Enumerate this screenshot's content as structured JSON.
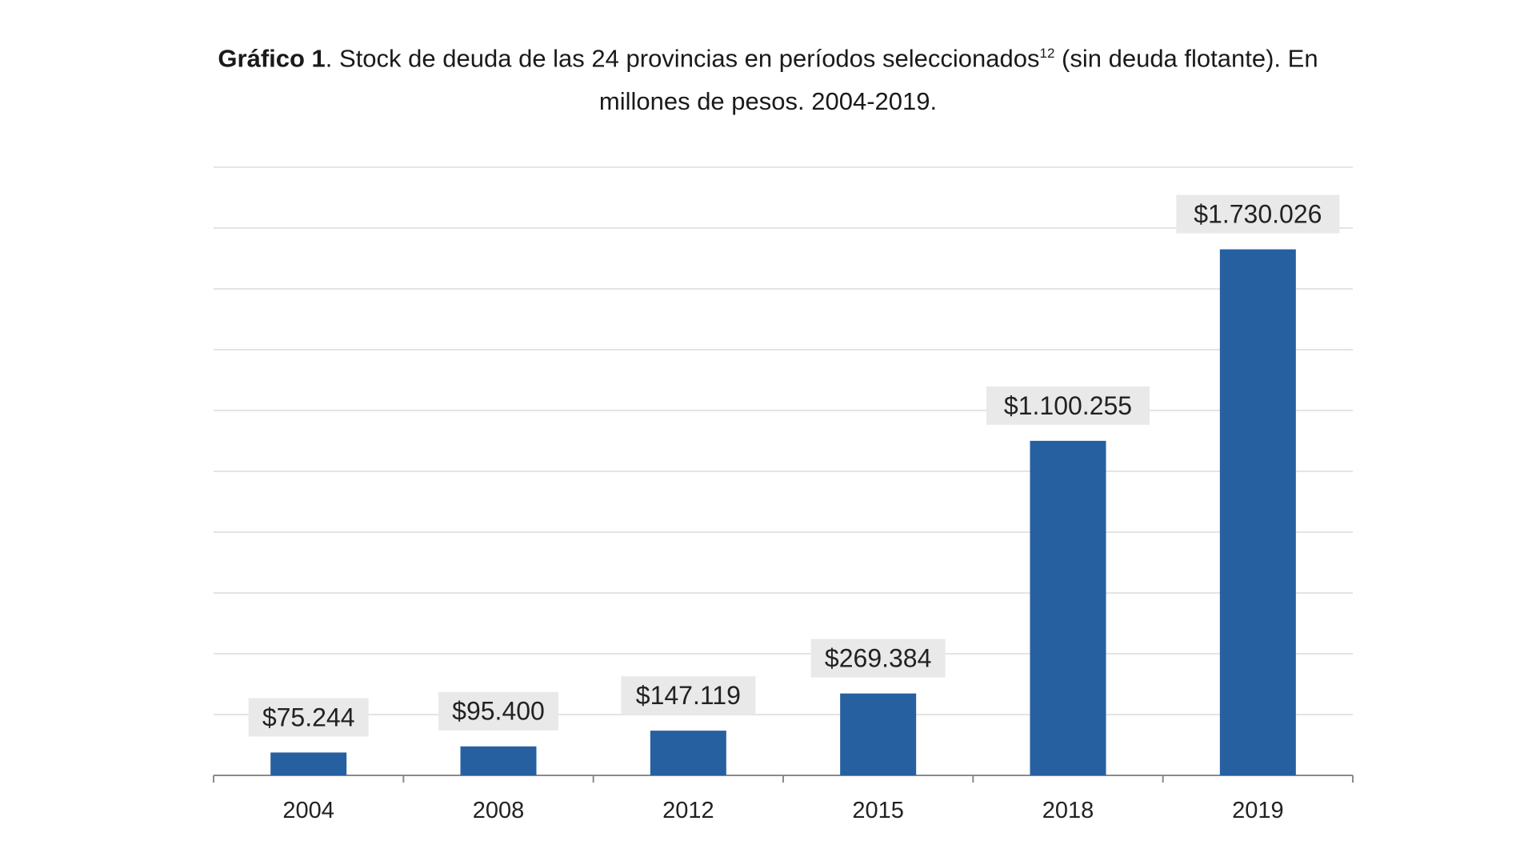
{
  "chart_data": {
    "type": "bar",
    "title_bold": "Gráfico 1",
    "title_rest": ". Stock de deuda de las 24 provincias en períodos seleccionados",
    "title_sup": "12",
    "title_tail": " (sin deuda flotante). En",
    "title_line2": "millones de pesos. 2004-2019.",
    "categories": [
      "2004",
      "2008",
      "2012",
      "2015",
      "2018",
      "2019"
    ],
    "values": [
      75244,
      95400,
      147119,
      269384,
      1100255,
      1730026
    ],
    "data_labels": [
      "$75.244",
      "$95.400",
      "$147.119",
      "$269.384",
      "$1.100.255",
      "$1.730.026"
    ],
    "xlabel": "",
    "ylabel": "",
    "ylim": [
      0,
      2000000
    ],
    "grid_step": 200000,
    "grid": true,
    "bar_color": "#2760a0",
    "label_bg": "#e9e9e9"
  }
}
